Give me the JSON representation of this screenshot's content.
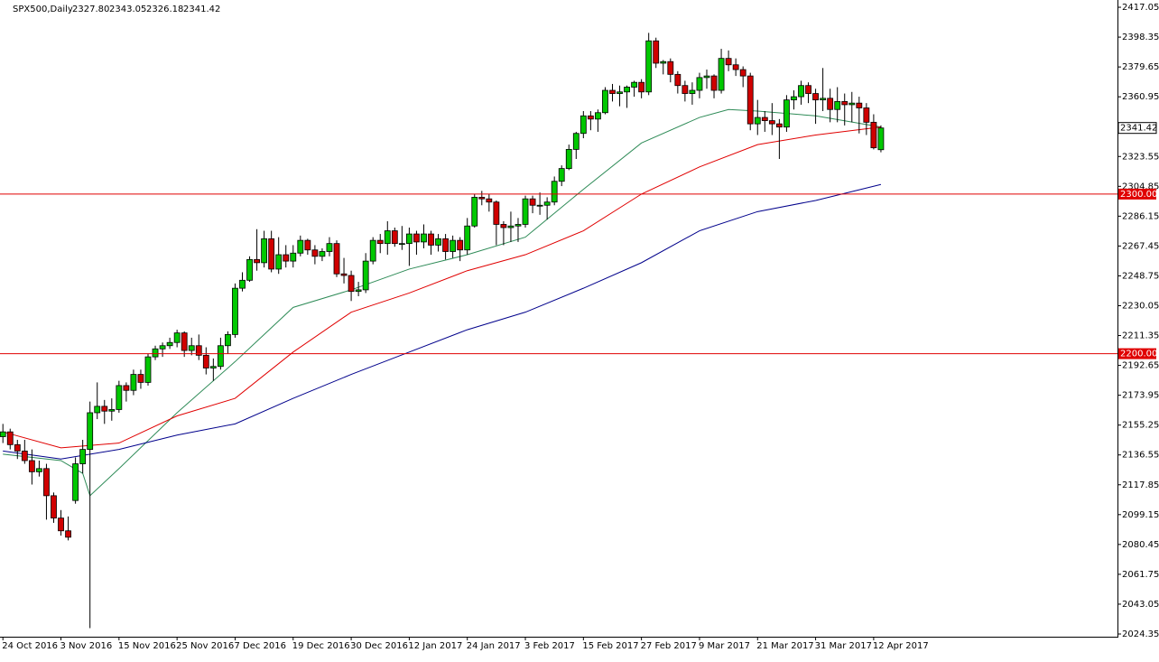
{
  "chart_data": {
    "type": "candlestick",
    "title": "SPX500,Daily",
    "ohlc_labels": [
      "2327.80",
      "2343.05",
      "2326.18",
      "2341.42"
    ],
    "up_color": "#00c800",
    "down_color": "#d00000",
    "open": [
      2148,
      2151,
      2143,
      2139,
      2133,
      2126,
      2128,
      2111,
      2097,
      2089,
      2108,
      2131,
      2140,
      2163,
      2167,
      2164,
      2165,
      2180,
      2177,
      2187,
      2182,
      2198,
      2203,
      2205,
      2207,
      2213,
      2202,
      2205,
      2199,
      2191,
      2192,
      2205,
      2212,
      2241,
      2246,
      2259,
      2257,
      2272,
      2253,
      2262,
      2258,
      2263,
      2271,
      2265,
      2261,
      2264,
      2269,
      2250,
      2249,
      2239,
      2240,
      2258,
      2271,
      2269,
      2277,
      2269,
      2269,
      2275,
      2270,
      2275,
      2268,
      2272,
      2264,
      2271,
      2265,
      2280,
      2298,
      2297,
      2295,
      2281,
      2279,
      2280,
      2281,
      2297,
      2293,
      2293,
      2295,
      2308,
      2316,
      2328,
      2338,
      2349,
      2347,
      2351,
      2365,
      2363,
      2364,
      2367,
      2370,
      2364,
      2396,
      2382,
      2383,
      2375,
      2368,
      2363,
      2365,
      2373,
      2374,
      2365,
      2385,
      2381,
      2378,
      2374,
      2344,
      2348,
      2346,
      2344,
      2342,
      2359,
      2361,
      2368,
      2363,
      2359,
      2360,
      2353,
      2358,
      2356,
      2357,
      2354,
      2345,
      2327.8
    ],
    "high": [
      2156,
      2153,
      2146,
      2146,
      2140,
      2133,
      2131,
      2113,
      2102,
      2098,
      2135,
      2146,
      2170,
      2182,
      2171,
      2172,
      2183,
      2182,
      2190,
      2190,
      2200,
      2205,
      2207,
      2210,
      2215,
      2214,
      2210,
      2212,
      2204,
      2197,
      2210,
      2214,
      2244,
      2251,
      2261,
      2278,
      2277,
      2277,
      2273,
      2268,
      2268,
      2274,
      2272,
      2268,
      2266,
      2273,
      2271,
      2260,
      2252,
      2245,
      2263,
      2273,
      2275,
      2283,
      2279,
      2280,
      2279,
      2277,
      2281,
      2277,
      2275,
      2275,
      2274,
      2273,
      2285,
      2300,
      2302,
      2300,
      2296,
      2283,
      2289,
      2285,
      2299,
      2299,
      2301,
      2298,
      2311,
      2318,
      2331,
      2339,
      2352,
      2352,
      2353,
      2367,
      2369,
      2368,
      2368,
      2371,
      2372,
      2401,
      2398,
      2384,
      2385,
      2377,
      2371,
      2370,
      2376,
      2378,
      2375,
      2391,
      2390,
      2385,
      2380,
      2376,
      2359,
      2352,
      2357,
      2347,
      2362,
      2365,
      2371,
      2370,
      2366,
      2379,
      2366,
      2367,
      2363,
      2364,
      2361,
      2357,
      2350,
      2343.05
    ],
    "low": [
      2144,
      2140,
      2134,
      2131,
      2118,
      2123,
      2096,
      2094,
      2086,
      2083,
      2106,
      2125,
      2028,
      2159,
      2156,
      2158,
      2163,
      2170,
      2174,
      2178,
      2180,
      2196,
      2198,
      2203,
      2204,
      2198,
      2199,
      2196,
      2187,
      2183,
      2190,
      2200,
      2210,
      2239,
      2245,
      2252,
      2254,
      2251,
      2250,
      2254,
      2254,
      2261,
      2262,
      2256,
      2258,
      2261,
      2248,
      2244,
      2233,
      2236,
      2238,
      2256,
      2263,
      2262,
      2267,
      2265,
      2255,
      2262,
      2266,
      2262,
      2264,
      2259,
      2260,
      2258,
      2262,
      2279,
      2293,
      2289,
      2268,
      2268,
      2270,
      2270,
      2279,
      2288,
      2287,
      2284,
      2293,
      2305,
      2315,
      2322,
      2335,
      2340,
      2339,
      2350,
      2358,
      2355,
      2354,
      2361,
      2360,
      2362,
      2379,
      2375,
      2370,
      2363,
      2358,
      2356,
      2360,
      2366,
      2360,
      2363,
      2377,
      2374,
      2367,
      2340,
      2337,
      2339,
      2337,
      2322,
      2339,
      2353,
      2356,
      2357,
      2344,
      2352,
      2345,
      2345,
      2343,
      2345,
      2338,
      2337,
      2328,
      2326.18
    ],
    "close": [
      2151,
      2143,
      2139,
      2133,
      2126,
      2128,
      2111,
      2097,
      2089,
      2085,
      2131,
      2140,
      2163,
      2167,
      2164,
      2165,
      2180,
      2177,
      2187,
      2182,
      2198,
      2203,
      2205,
      2207,
      2213,
      2202,
      2205,
      2199,
      2191,
      2192,
      2205,
      2212,
      2241,
      2246,
      2259,
      2257,
      2272,
      2253,
      2262,
      2258,
      2263,
      2271,
      2265,
      2261,
      2264,
      2269,
      2250,
      2249,
      2239,
      2240,
      2258,
      2271,
      2269,
      2277,
      2269,
      2269,
      2275,
      2270,
      2275,
      2268,
      2272,
      2264,
      2271,
      2265,
      2280,
      2298,
      2297,
      2295,
      2281,
      2279,
      2280,
      2281,
      2297,
      2293,
      2293,
      2295,
      2308,
      2316,
      2328,
      2338,
      2349,
      2347,
      2351,
      2365,
      2363,
      2364,
      2367,
      2370,
      2364,
      2396,
      2382,
      2383,
      2375,
      2368,
      2363,
      2365,
      2373,
      2374,
      2365,
      2385,
      2381,
      2378,
      2374,
      2344,
      2348,
      2346,
      2344,
      2342,
      2359,
      2361,
      2368,
      2363,
      2359,
      2360,
      2353,
      2358,
      2356,
      2357,
      2354,
      2345,
      2329,
      2341.42
    ],
    "moving_averages": [
      {
        "color": "#2e8b57",
        "x": [
          0,
          8,
          11,
          12,
          16,
          24,
          32,
          40,
          48,
          56,
          64,
          72,
          80,
          88,
          96,
          100,
          104,
          112,
          121
        ],
        "values": [
          2137,
          2133,
          2125,
          2111,
          2128,
          2163,
          2195,
          2229,
          2240,
          2253,
          2262,
          2273,
          2303,
          2332,
          2348,
          2353,
          2352,
          2349,
          2342
        ]
      },
      {
        "color": "#e00000",
        "x": [
          0,
          8,
          16,
          24,
          32,
          40,
          48,
          56,
          64,
          72,
          80,
          88,
          96,
          104,
          112,
          121
        ],
        "values": [
          2151,
          2141,
          2144,
          2161,
          2172,
          2201,
          2226,
          2238,
          2252,
          2262,
          2277,
          2300,
          2317,
          2331,
          2337,
          2342
        ]
      },
      {
        "color": "#00008b",
        "x": [
          0,
          8,
          16,
          24,
          32,
          40,
          48,
          56,
          64,
          72,
          80,
          88,
          96,
          104,
          112,
          121
        ],
        "values": [
          2139,
          2134,
          2140,
          2149,
          2156,
          2172,
          2187,
          2201,
          2215,
          2226,
          2241,
          2257,
          2277,
          2289,
          2296,
          2306
        ]
      }
    ],
    "hlines": [
      {
        "value": 2300,
        "label": "2300.00"
      },
      {
        "value": 2200,
        "label": "2200.00"
      }
    ],
    "hline_color": "#e00000",
    "ylim": [
      2022.65,
      2421.6
    ],
    "yticks": [
      2024.35,
      2043.05,
      2061.75,
      2080.45,
      2099.15,
      2117.85,
      2136.55,
      2155.25,
      2173.95,
      2192.65,
      2211.35,
      2230.05,
      2248.75,
      2267.45,
      2286.15,
      2304.85,
      2323.55,
      2360.95,
      2379.65,
      2398.35,
      2417.05
    ],
    "xlim": [
      -0.4,
      153.6
    ],
    "xticks": [
      {
        "value": 0,
        "label": "24 Oct 2016"
      },
      {
        "value": 8,
        "label": "3 Nov 2016"
      },
      {
        "value": 16,
        "label": "15 Nov 2016"
      },
      {
        "value": 24,
        "label": "25 Nov 2016"
      },
      {
        "value": 32,
        "label": "7 Dec 2016"
      },
      {
        "value": 40,
        "label": "19 Dec 2016"
      },
      {
        "value": 48,
        "label": "30 Dec 2016"
      },
      {
        "value": 56,
        "label": "12 Jan 2017"
      },
      {
        "value": 64,
        "label": "24 Jan 2017"
      },
      {
        "value": 72,
        "label": "3 Feb 2017"
      },
      {
        "value": 80,
        "label": "15 Feb 2017"
      },
      {
        "value": 88,
        "label": "27 Feb 2017"
      },
      {
        "value": 96,
        "label": "9 Mar 2017"
      },
      {
        "value": 104,
        "label": "21 Mar 2017"
      },
      {
        "value": 112,
        "label": "31 Mar 2017"
      },
      {
        "value": 120,
        "label": "12 Apr 2017"
      }
    ]
  }
}
